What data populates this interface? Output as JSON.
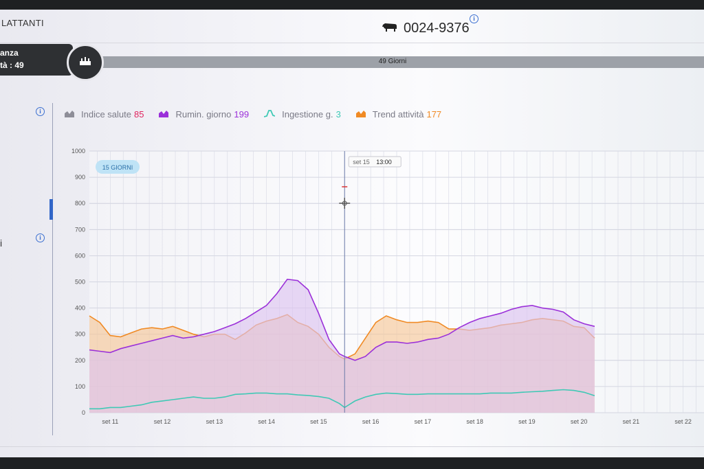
{
  "header": {
    "section_title": "LATTANTI",
    "animal_id": "0024-9376"
  },
  "lactation": {
    "line1": "anza",
    "line2": "tà : 49",
    "days_label": "49 Giorni"
  },
  "side": {
    "letter": "i"
  },
  "legend": [
    {
      "label": "Indice salute",
      "value": "85",
      "color": "#e0245e",
      "icon": "area-icon"
    },
    {
      "label": "Rumin. giorno",
      "value": "199",
      "color": "#9b30d9",
      "icon": "area-icon"
    },
    {
      "label": "Ingestione g.",
      "value": "3",
      "color": "#3fc9b5",
      "icon": "line-icon"
    },
    {
      "label": "Trend attività",
      "value": "177",
      "color": "#f08a24",
      "icon": "area-icon"
    }
  ],
  "chart_data": {
    "type": "area",
    "range_badge": "15 GIORNI",
    "cursor": {
      "date": "set 15",
      "time": "13:00",
      "x": 15.5
    },
    "ylim": [
      0,
      1000
    ],
    "y_ticks": [
      0,
      100,
      200,
      300,
      400,
      500,
      600,
      700,
      800,
      900,
      1000
    ],
    "x_ticks": [
      {
        "label": "set 11",
        "x": 11
      },
      {
        "label": "set 12",
        "x": 12
      },
      {
        "label": "set 13",
        "x": 13
      },
      {
        "label": "set 14",
        "x": 14
      },
      {
        "label": "set 15",
        "x": 15
      },
      {
        "label": "set 16",
        "x": 16
      },
      {
        "label": "set 17",
        "x": 17
      },
      {
        "label": "set 18",
        "x": 18
      },
      {
        "label": "set 19",
        "x": 19
      },
      {
        "label": "set 20",
        "x": 20
      },
      {
        "label": "set 21",
        "x": 21
      },
      {
        "label": "set 22",
        "x": 22
      }
    ],
    "xlim": [
      10.6,
      22.4
    ],
    "series": [
      {
        "name": "Trend attività",
        "color": "#f08a24",
        "fill": "#f6c79a",
        "points": [
          [
            10.6,
            370
          ],
          [
            10.8,
            345
          ],
          [
            11.0,
            295
          ],
          [
            11.2,
            290
          ],
          [
            11.4,
            305
          ],
          [
            11.6,
            320
          ],
          [
            11.8,
            325
          ],
          [
            12.0,
            320
          ],
          [
            12.2,
            330
          ],
          [
            12.4,
            315
          ],
          [
            12.6,
            300
          ],
          [
            12.8,
            290
          ],
          [
            13.0,
            300
          ],
          [
            13.2,
            300
          ],
          [
            13.4,
            280
          ],
          [
            13.6,
            305
          ],
          [
            13.8,
            335
          ],
          [
            14.0,
            350
          ],
          [
            14.2,
            360
          ],
          [
            14.4,
            375
          ],
          [
            14.6,
            345
          ],
          [
            14.8,
            330
          ],
          [
            15.0,
            300
          ],
          [
            15.2,
            250
          ],
          [
            15.4,
            215
          ],
          [
            15.5,
            205
          ],
          [
            15.7,
            225
          ],
          [
            15.9,
            285
          ],
          [
            16.1,
            345
          ],
          [
            16.3,
            370
          ],
          [
            16.5,
            355
          ],
          [
            16.7,
            345
          ],
          [
            16.9,
            345
          ],
          [
            17.1,
            350
          ],
          [
            17.3,
            345
          ],
          [
            17.5,
            320
          ],
          [
            17.7,
            320
          ],
          [
            17.9,
            315
          ],
          [
            18.1,
            320
          ],
          [
            18.3,
            325
          ],
          [
            18.5,
            335
          ],
          [
            18.7,
            340
          ],
          [
            18.9,
            345
          ],
          [
            19.1,
            355
          ],
          [
            19.3,
            360
          ],
          [
            19.5,
            355
          ],
          [
            19.7,
            350
          ],
          [
            19.9,
            330
          ],
          [
            20.1,
            325
          ],
          [
            20.3,
            285
          ]
        ]
      },
      {
        "name": "Rumin. giorno",
        "color": "#9b30d9",
        "fill": "#dcc3f0",
        "points": [
          [
            10.6,
            240
          ],
          [
            10.8,
            235
          ],
          [
            11.0,
            230
          ],
          [
            11.2,
            245
          ],
          [
            11.4,
            255
          ],
          [
            11.6,
            265
          ],
          [
            11.8,
            275
          ],
          [
            12.0,
            285
          ],
          [
            12.2,
            295
          ],
          [
            12.4,
            285
          ],
          [
            12.6,
            290
          ],
          [
            12.8,
            300
          ],
          [
            13.0,
            310
          ],
          [
            13.2,
            325
          ],
          [
            13.4,
            340
          ],
          [
            13.6,
            360
          ],
          [
            13.8,
            385
          ],
          [
            14.0,
            410
          ],
          [
            14.2,
            455
          ],
          [
            14.4,
            510
          ],
          [
            14.6,
            505
          ],
          [
            14.8,
            470
          ],
          [
            15.0,
            380
          ],
          [
            15.2,
            280
          ],
          [
            15.4,
            225
          ],
          [
            15.5,
            215
          ],
          [
            15.7,
            200
          ],
          [
            15.9,
            215
          ],
          [
            16.1,
            250
          ],
          [
            16.3,
            270
          ],
          [
            16.5,
            270
          ],
          [
            16.7,
            265
          ],
          [
            16.9,
            270
          ],
          [
            17.1,
            280
          ],
          [
            17.3,
            285
          ],
          [
            17.5,
            300
          ],
          [
            17.7,
            325
          ],
          [
            17.9,
            345
          ],
          [
            18.1,
            360
          ],
          [
            18.3,
            370
          ],
          [
            18.5,
            380
          ],
          [
            18.7,
            395
          ],
          [
            18.9,
            405
          ],
          [
            19.1,
            410
          ],
          [
            19.3,
            400
          ],
          [
            19.5,
            395
          ],
          [
            19.7,
            385
          ],
          [
            19.9,
            355
          ],
          [
            20.1,
            340
          ],
          [
            20.3,
            330
          ]
        ]
      },
      {
        "name": "Ingestione g.",
        "color": "#3fc9b5",
        "fill": "none",
        "points": [
          [
            10.6,
            15
          ],
          [
            10.8,
            15
          ],
          [
            11.0,
            20
          ],
          [
            11.2,
            20
          ],
          [
            11.4,
            25
          ],
          [
            11.6,
            30
          ],
          [
            11.8,
            40
          ],
          [
            12.0,
            45
          ],
          [
            12.2,
            50
          ],
          [
            12.4,
            55
          ],
          [
            12.6,
            60
          ],
          [
            12.8,
            55
          ],
          [
            13.0,
            55
          ],
          [
            13.2,
            60
          ],
          [
            13.4,
            70
          ],
          [
            13.6,
            72
          ],
          [
            13.8,
            75
          ],
          [
            14.0,
            75
          ],
          [
            14.2,
            72
          ],
          [
            14.4,
            72
          ],
          [
            14.6,
            68
          ],
          [
            14.8,
            66
          ],
          [
            15.0,
            62
          ],
          [
            15.2,
            55
          ],
          [
            15.4,
            35
          ],
          [
            15.5,
            20
          ],
          [
            15.7,
            45
          ],
          [
            15.9,
            60
          ],
          [
            16.1,
            70
          ],
          [
            16.3,
            75
          ],
          [
            16.5,
            73
          ],
          [
            16.7,
            70
          ],
          [
            16.9,
            70
          ],
          [
            17.1,
            72
          ],
          [
            17.3,
            72
          ],
          [
            17.5,
            72
          ],
          [
            17.7,
            72
          ],
          [
            17.9,
            72
          ],
          [
            18.1,
            72
          ],
          [
            18.3,
            75
          ],
          [
            18.5,
            75
          ],
          [
            18.7,
            75
          ],
          [
            18.9,
            78
          ],
          [
            19.1,
            80
          ],
          [
            19.3,
            82
          ],
          [
            19.5,
            85
          ],
          [
            19.7,
            88
          ],
          [
            19.9,
            85
          ],
          [
            20.1,
            78
          ],
          [
            20.3,
            65
          ]
        ]
      }
    ]
  }
}
